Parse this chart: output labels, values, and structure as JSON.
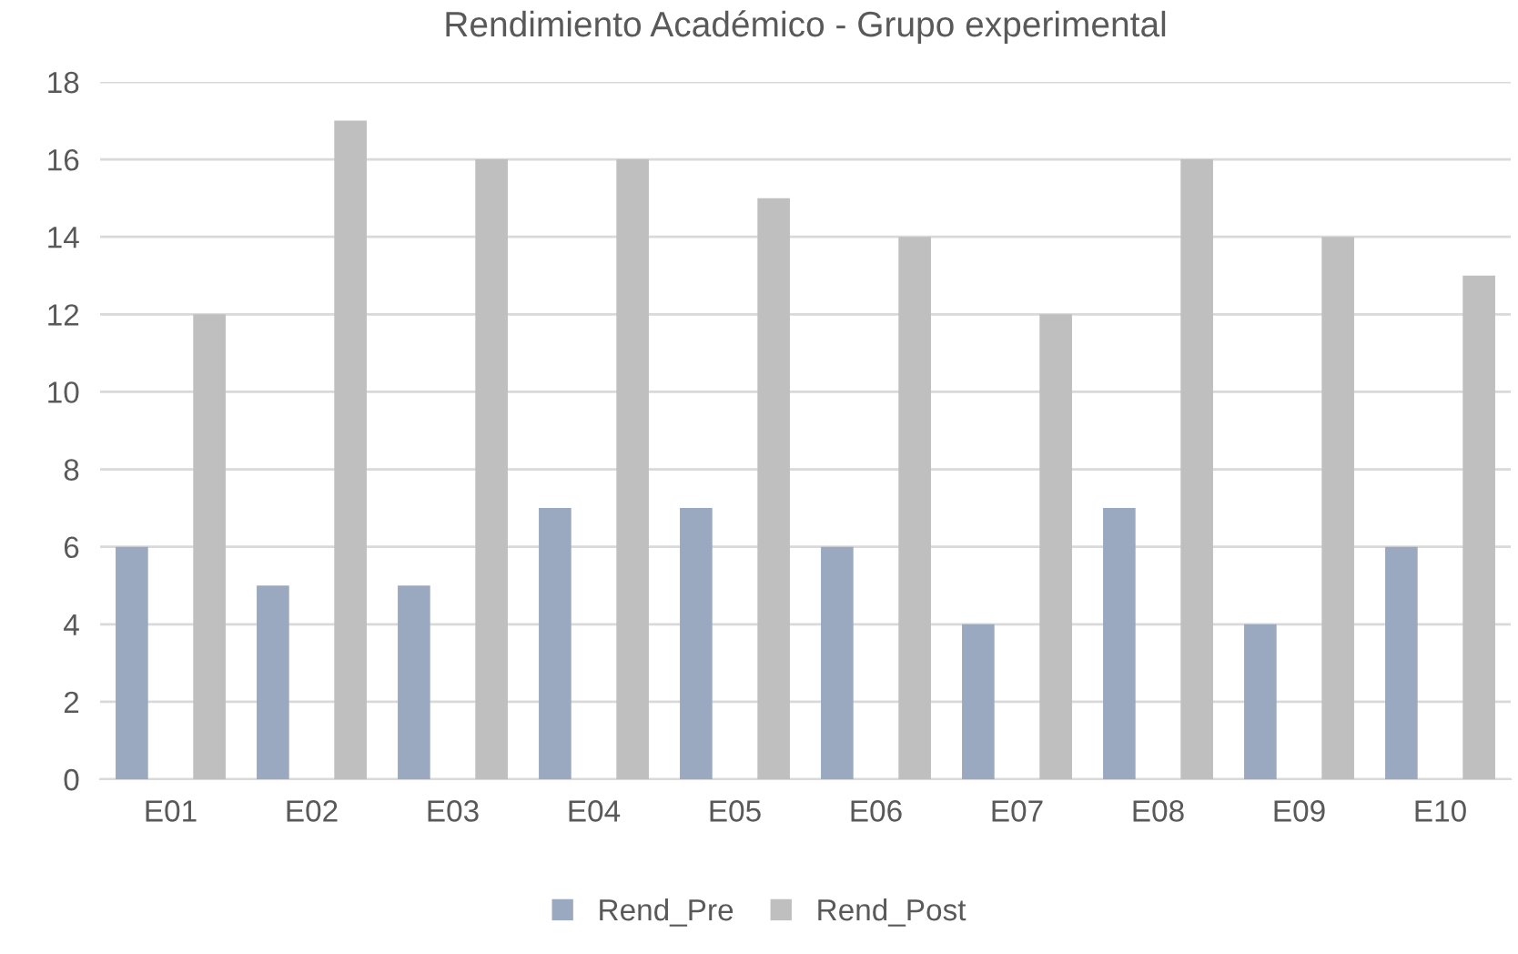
{
  "chart_data": {
    "type": "bar",
    "title": "Rendimiento Académico - Grupo experimental",
    "categories": [
      "E01",
      "E02",
      "E03",
      "E04",
      "E05",
      "E06",
      "E07",
      "E08",
      "E09",
      "E10"
    ],
    "series": [
      {
        "name": "Rend_Pre",
        "color": "#9aa9c0",
        "values": [
          6,
          5,
          5,
          7,
          7,
          6,
          4,
          7,
          4,
          6
        ]
      },
      {
        "name": "Rend_Post",
        "color": "#bfbfbf",
        "values": [
          12,
          17,
          16,
          16,
          15,
          14,
          12,
          16,
          14,
          13
        ]
      }
    ],
    "ylim": [
      0,
      18
    ],
    "yticks": [
      0,
      2,
      4,
      6,
      8,
      10,
      12,
      14,
      16,
      18
    ],
    "grid": "y",
    "legend": "bottom"
  }
}
